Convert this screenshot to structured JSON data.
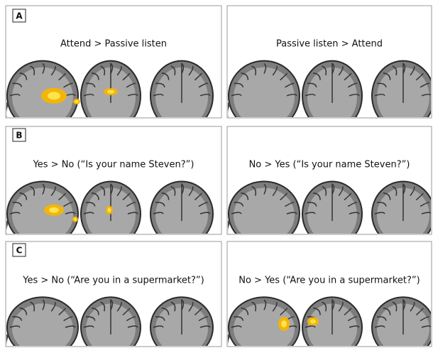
{
  "rows": [
    {
      "label": "A",
      "left": {
        "title": "Attend > Passive listen"
      },
      "right": {
        "title": "Passive listen > Attend"
      }
    },
    {
      "label": "B",
      "left": {
        "title": "Yes > No (“Is your name Steven?”)"
      },
      "right": {
        "title": "No > Yes (“Is your name Steven?”)"
      }
    },
    {
      "label": "C",
      "left": {
        "title": "Yes > No (“Are you in a supermarket?”)"
      },
      "right": {
        "title": "No > Yes (“Are you in a supermarket?”)"
      }
    }
  ]
}
